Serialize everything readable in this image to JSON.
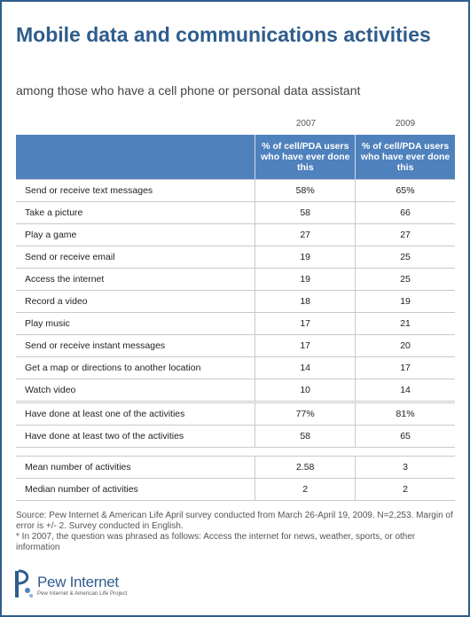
{
  "title": "Mobile data and communications activities",
  "subtitle": "among those who have a cell phone or personal data assistant",
  "years": [
    "2007",
    "2009"
  ],
  "header": {
    "col1": "% of cell/PDA users who have ever done this",
    "col2": "% of cell/PDA users who have ever done this"
  },
  "activities": [
    {
      "label": "Send or receive text messages",
      "v2007": "58%",
      "v2009": "65%"
    },
    {
      "label": "Take a picture",
      "v2007": "58",
      "v2009": "66"
    },
    {
      "label": "Play a game",
      "v2007": "27",
      "v2009": "27"
    },
    {
      "label": "Send or receive email",
      "v2007": "19",
      "v2009": "25"
    },
    {
      "label": "Access the internet",
      "v2007": "19",
      "v2009": "25"
    },
    {
      "label": "Record a video",
      "v2007": "18",
      "v2009": "19"
    },
    {
      "label": "Play music",
      "v2007": "17",
      "v2009": "21"
    },
    {
      "label": "Send or receive instant messages",
      "v2007": "17",
      "v2009": "20"
    },
    {
      "label": "Get a map or directions to another location",
      "v2007": "14",
      "v2009": "17"
    },
    {
      "label": "Watch video",
      "v2007": "10",
      "v2009": "14"
    }
  ],
  "summary": [
    {
      "label": "Have done at least one of the activities",
      "v2007": "77%",
      "v2009": "81%"
    },
    {
      "label": "Have done at least two of the activities",
      "v2007": "58",
      "v2009": "65"
    }
  ],
  "stats": [
    {
      "label": "Mean number of activities",
      "v2007": "2.58",
      "v2009": "3"
    },
    {
      "label": "Median number of activities",
      "v2007": "2",
      "v2009": "2"
    }
  ],
  "footnotes": {
    "source": "Source: Pew Internet & American Life April survey conducted from March 26-April 19, 2009. N=2,253. Margin of error is +/- 2. Survey conducted in English.",
    "note": "* In 2007, the question was phrased as follows: Access the internet for news, weather, sports, or other information"
  },
  "logo": {
    "name": "Pew Internet",
    "tagline": "Pew Internet & American Life Project"
  },
  "colors": {
    "accent": "#2f5d8c",
    "header_bg": "#4f81bd"
  }
}
